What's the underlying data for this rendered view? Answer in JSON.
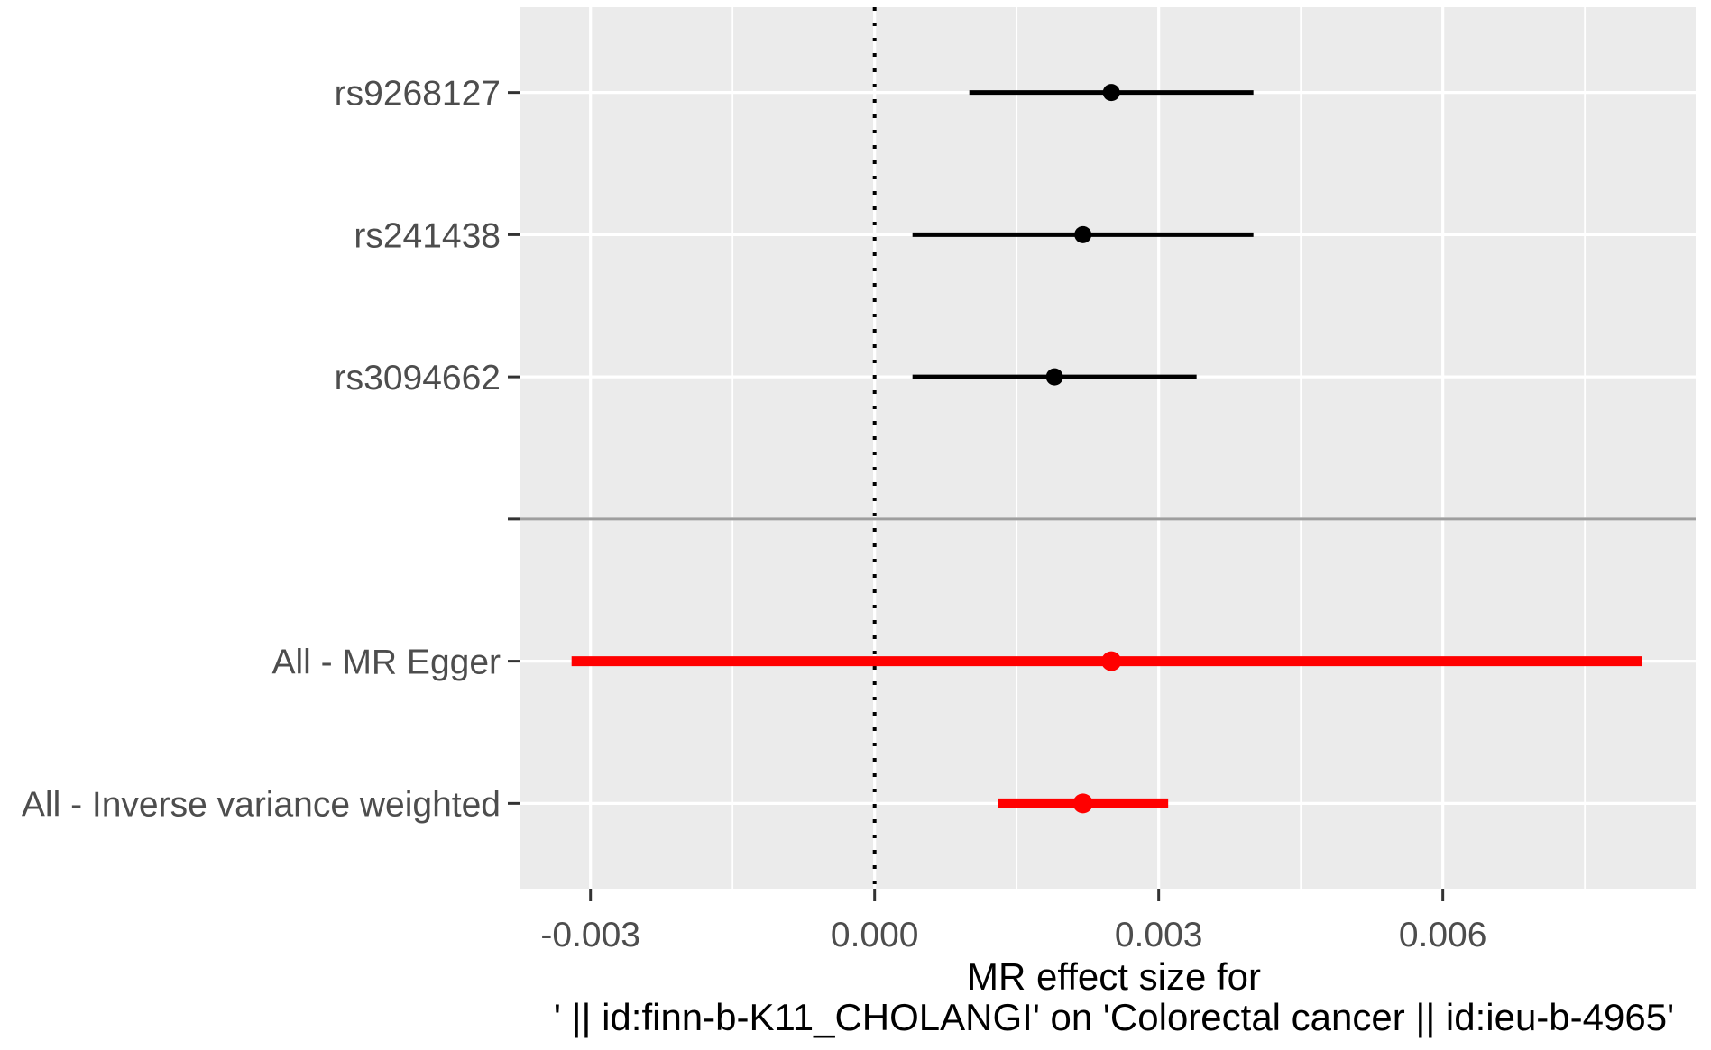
{
  "figure": {
    "background": "#FFFFFF"
  },
  "chart_data": {
    "type": "scatter",
    "subtype": "forest-plot",
    "xlabel_line1": "MR effect size for",
    "xlabel_line2": "' || id:finn-b-K11_CHOLANGI' on 'Colorectal cancer || id:ieu-b-4965'",
    "x_ticks": [
      {
        "value": -0.003,
        "label": "-0.003"
      },
      {
        "value": 0.0,
        "label": "0.000"
      },
      {
        "value": 0.003,
        "label": "0.003"
      },
      {
        "value": 0.006,
        "label": "0.006"
      }
    ],
    "x_minor_ticks": [
      -0.0015,
      0.0015,
      0.0045,
      0.0075
    ],
    "xlim": [
      -0.00374,
      0.00867
    ],
    "vline_x": 0,
    "grid": true,
    "legend": false,
    "rows_top_to_bottom": [
      {
        "label": "rs9268127",
        "estimate": 0.0025,
        "ci_low": 0.001,
        "ci_high": 0.004,
        "group": "snp"
      },
      {
        "label": "rs241438",
        "estimate": 0.0022,
        "ci_low": 0.0004,
        "ci_high": 0.004,
        "group": "snp"
      },
      {
        "label": "rs3094662",
        "estimate": 0.0019,
        "ci_low": 0.0004,
        "ci_high": 0.0034,
        "group": "snp"
      },
      {
        "label": "",
        "separator": true
      },
      {
        "label": "All - MR Egger",
        "estimate": 0.0025,
        "ci_low": -0.0032,
        "ci_high": 0.0081,
        "group": "all"
      },
      {
        "label": "All - Inverse variance weighted",
        "estimate": 0.0022,
        "ci_low": 0.0013,
        "ci_high": 0.0031,
        "group": "all"
      }
    ],
    "colors": {
      "panel_background": "#EBEBEB",
      "gridline": "#FFFFFF",
      "axis_text": "#4D4D4D",
      "axis_title": "#000000",
      "tick_mark": "#333333",
      "snp": "#000000",
      "all": "#FF0000",
      "separator_line": "#9E9E9E",
      "zero_line": "#000000"
    }
  }
}
